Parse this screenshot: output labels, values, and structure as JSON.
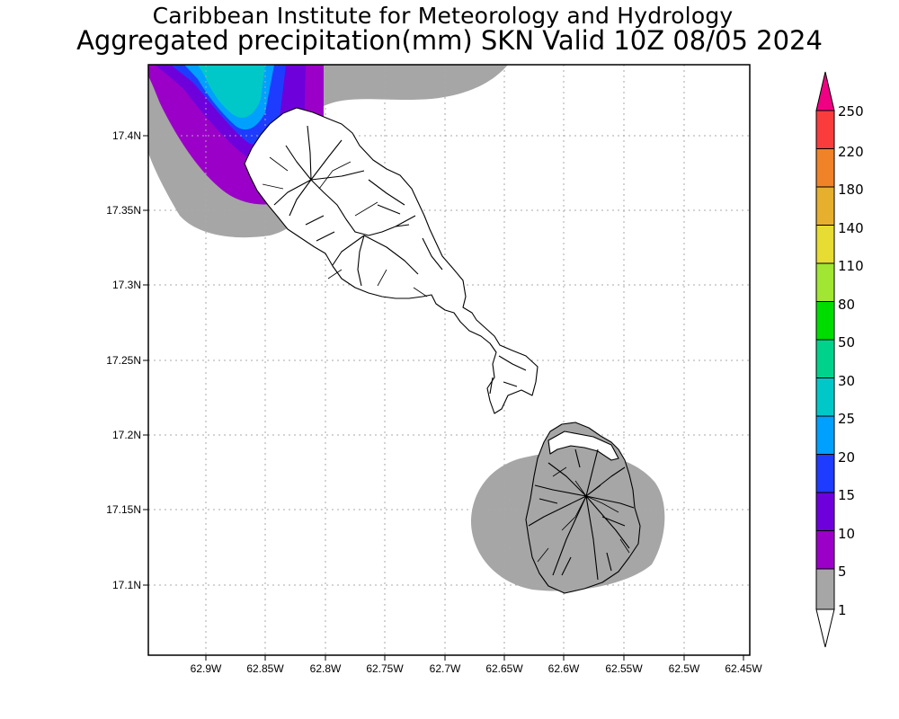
{
  "title": {
    "line1": "Caribbean Institute for Meteorology and Hydrology",
    "line2": "Aggregated precipitation(mm) SKN Valid 10Z 08/05 2024"
  },
  "map": {
    "lon_range_west": [
      62.94,
      62.44
    ],
    "lat_range": [
      17.047,
      17.443
    ],
    "x_ticks": [
      "62.9W",
      "62.85W",
      "62.8W",
      "62.75W",
      "62.7W",
      "62.65W",
      "62.6W",
      "62.55W",
      "62.5W",
      "62.45W"
    ],
    "y_ticks": [
      "17.4N",
      "17.35N",
      "17.3N",
      "17.25N",
      "17.2N",
      "17.15N",
      "17.1N"
    ],
    "grid": true,
    "islands": [
      "St. Kitts",
      "Nevis"
    ]
  },
  "colorbar": {
    "labels": [
      "1",
      "5",
      "10",
      "15",
      "20",
      "25",
      "30",
      "50",
      "80",
      "110",
      "140",
      "180",
      "220",
      "250"
    ],
    "colors": [
      "#ffffff",
      "#a6a6a6",
      "#9b00c8",
      "#6e00dc",
      "#1e3cff",
      "#00a0ff",
      "#00c8c8",
      "#00d28c",
      "#00dc00",
      "#a0e632",
      "#e6dc32",
      "#e6af2d",
      "#f08228",
      "#fa3c3c",
      "#f00082"
    ]
  }
}
